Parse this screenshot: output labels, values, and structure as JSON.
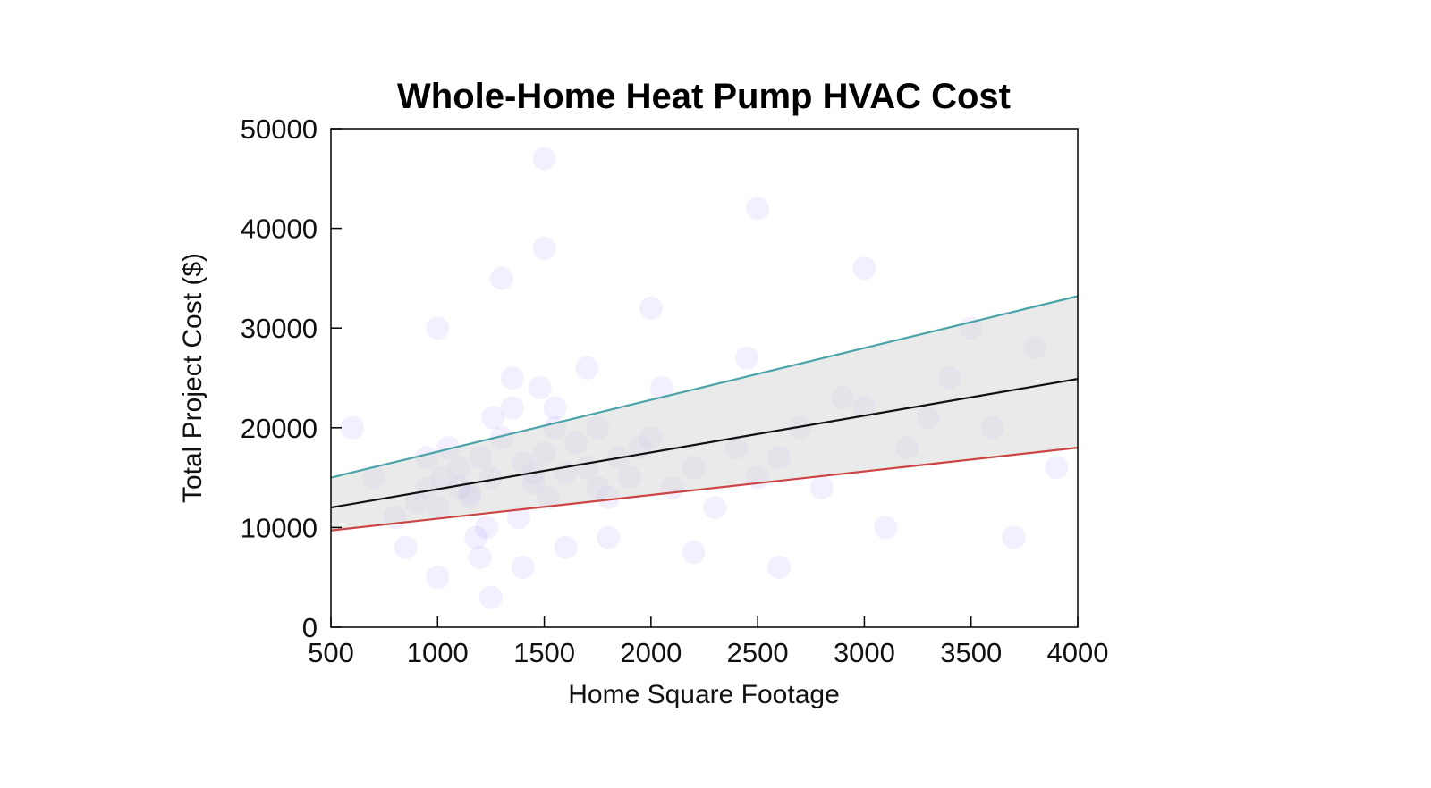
{
  "chart_data": {
    "type": "scatter",
    "title": "Whole-Home Heat Pump HVAC Cost",
    "xlabel": "Home Square Footage",
    "ylabel": "Total Project Cost ($)",
    "xlim": [
      500,
      4000
    ],
    "ylim": [
      0,
      50000
    ],
    "xticks": [
      500,
      1000,
      1500,
      2000,
      2500,
      3000,
      3500,
      4000
    ],
    "yticks": [
      0,
      10000,
      20000,
      30000,
      40000,
      50000
    ],
    "grid": false,
    "legend": "none",
    "band": {
      "color": "#d9d9d9"
    },
    "lines": [
      {
        "x": [
          500,
          4000
        ],
        "y": [
          15000,
          33200
        ],
        "color": "#4aa3a8"
      },
      {
        "x": [
          500,
          4000
        ],
        "y": [
          12000,
          24900
        ],
        "color": "#111111"
      },
      {
        "x": [
          500,
          4000
        ],
        "y": [
          9700,
          18000
        ],
        "color": "#cc4444"
      }
    ],
    "point_color": "#7b4dff",
    "points": {
      "x": [
        1000,
        1020,
        1050,
        950,
        1100,
        1150,
        1200,
        1250,
        1230,
        1300,
        1350,
        1400,
        1450,
        1500,
        1520,
        1550,
        1600,
        1650,
        1480,
        1380,
        1260,
        1180,
        900,
        850,
        1700,
        1750,
        1800,
        1850,
        1900,
        2000,
        2100,
        2200,
        2300,
        2400,
        2500,
        2600,
        2700,
        2800,
        3000,
        3200,
        3400,
        3600,
        3800,
        3900,
        700,
        600,
        800,
        1000,
        1300,
        1500,
        2000,
        2500,
        3000,
        3500,
        1000,
        1200,
        1400,
        1600,
        1800,
        2200,
        2600,
        3100,
        3700,
        1500,
        1250,
        1700,
        2050,
        2450,
        2900,
        3300,
        950,
        1100,
        1350,
        1550,
        1750,
        1950,
        1150,
        1450
      ],
      "y": [
        12000,
        15000,
        18000,
        14000,
        16000,
        13500,
        17000,
        15000,
        10000,
        19000,
        22000,
        16500,
        14500,
        17500,
        13000,
        20000,
        15500,
        18500,
        24000,
        11000,
        21000,
        9000,
        12500,
        8000,
        16000,
        14000,
        13000,
        17000,
        15000,
        19000,
        14000,
        16000,
        12000,
        18000,
        15000,
        17000,
        20000,
        14000,
        22000,
        18000,
        25000,
        20000,
        28000,
        16000,
        15000,
        20000,
        11000,
        30000,
        35000,
        38000,
        32000,
        42000,
        36000,
        30000,
        5000,
        7000,
        6000,
        8000,
        9000,
        7500,
        6000,
        10000,
        9000,
        47000,
        3000,
        26000,
        24000,
        27000,
        23000,
        21000,
        17000,
        14000,
        25000,
        22000,
        20000,
        18000,
        13000,
        15500
      ]
    }
  }
}
